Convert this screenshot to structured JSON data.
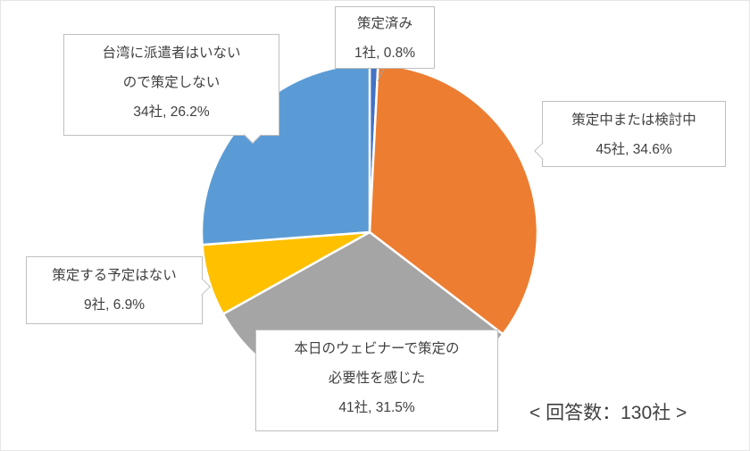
{
  "chart_data": {
    "type": "pie",
    "title": "",
    "start_angle_deg": -90,
    "direction": "clockwise",
    "total_responses": 130,
    "annotation": "< 回答数：130社 >",
    "slices": [
      {
        "label": "策定済み",
        "count": 1,
        "percent": 0.8,
        "value_label": "1社, 0.8%",
        "color": "#4472C4"
      },
      {
        "label": "策定中または検討中",
        "count": 45,
        "percent": 34.6,
        "value_label": "45社, 34.6%",
        "color": "#ED7D31"
      },
      {
        "label": "本日のウェビナーで策定の必要性を感じた",
        "count": 41,
        "percent": 31.5,
        "value_label": "41社, 31.5%",
        "color": "#A5A5A5"
      },
      {
        "label": "策定する予定はない",
        "count": 9,
        "percent": 6.9,
        "value_label": "9社, 6.9%",
        "color": "#FFC000"
      },
      {
        "label": "台湾に派遣者はいないので策定しない",
        "count": 34,
        "percent": 26.2,
        "value_label": "34社, 26.2%",
        "color": "#5B9BD5"
      }
    ]
  },
  "labels": {
    "formulated": {
      "line1": "策定済み",
      "line2": "1社, 0.8%"
    },
    "no_expat": {
      "line1": "台湾に派遣者はいない",
      "line2": "ので策定しない",
      "line3": "34社, 26.2%"
    },
    "in_progress": {
      "line1": "策定中または検討中",
      "line2": "45社, 34.6%"
    },
    "no_plan": {
      "line1": "策定する予定はない",
      "line2": "9社, 6.9%"
    },
    "webinar": {
      "line1": "本日のウェビナーで策定の",
      "line2": "必要性を感じた",
      "line3": "41社, 31.5%"
    }
  },
  "footer": {
    "respondents": "< 回答数：130社 >"
  }
}
